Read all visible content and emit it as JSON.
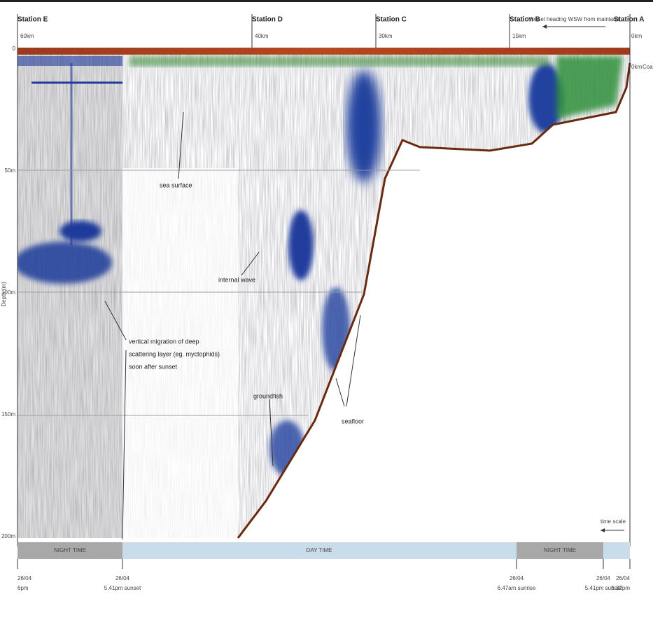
{
  "stations": [
    {
      "name": "Station E",
      "distance": "60km"
    },
    {
      "name": "Station D",
      "distance": "40km"
    },
    {
      "name": "Station C",
      "distance": "30km"
    },
    {
      "name": "Station B",
      "distance": "15km"
    },
    {
      "name": "Station A",
      "distance": "0km"
    }
  ],
  "heading": "Vessel heading WSW from mainland",
  "coast": {
    "distance": "0km",
    "label": "Coast"
  },
  "depth_axis": {
    "title": "Depth (m)",
    "labels": [
      "0",
      "50m",
      "100m",
      "150m",
      "200m"
    ]
  },
  "annotations": {
    "sea_surface": "sea surface",
    "internal_wave": "internal wave",
    "migration": [
      "vertical migration of deep",
      "scattering layer (eg. myctophids)",
      "soon after sunset"
    ],
    "groundfish": "groundfish",
    "seafloor": "seafloor"
  },
  "time_scale": "time scale",
  "periods": [
    "NIGHT TIME",
    "DAY TIME",
    "NIGHT TIME"
  ],
  "times": [
    [
      "26/04",
      "6pm"
    ],
    [
      "26/04",
      "5.41pm sunset"
    ],
    [
      "26/04",
      "6.47am sunrise"
    ],
    [
      "26/04",
      "5.41pm sunset"
    ],
    [
      "26/04",
      "5.32pm"
    ]
  ]
}
